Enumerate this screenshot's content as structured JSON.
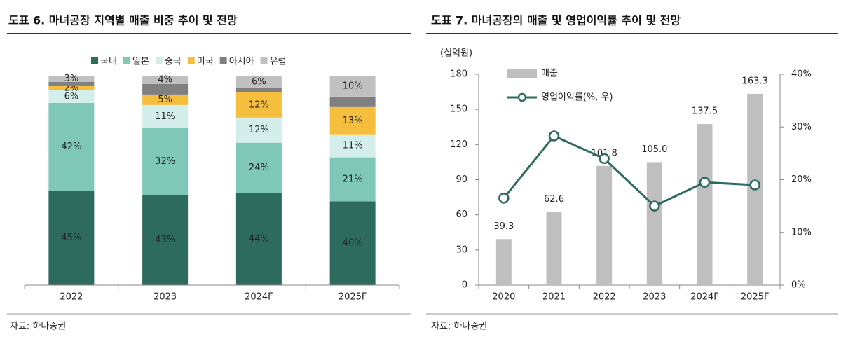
{
  "chart_data": [
    {
      "type": "bar",
      "stacked": true,
      "title": "도표 6. 마녀공장 지역별 매출 비중 추이 및 전망",
      "source": "자료: 하나증권",
      "categories": [
        "2022",
        "2023",
        "2024F",
        "2025F"
      ],
      "ylim": [
        0,
        100
      ],
      "series": [
        {
          "name": "국내",
          "color": "#2e6b5f",
          "values": [
            45,
            43,
            44,
            40
          ],
          "value_labels": [
            "45%",
            "43%",
            "44%",
            "40%"
          ]
        },
        {
          "name": "일본",
          "color": "#7fc8b8",
          "values": [
            42,
            32,
            24,
            21
          ],
          "value_labels": [
            "42%",
            "32%",
            "24%",
            "21%"
          ]
        },
        {
          "name": "중국",
          "color": "#d4efeb",
          "values": [
            6,
            11,
            12,
            11
          ],
          "value_labels": [
            "6%",
            "11%",
            "12%",
            "11%"
          ]
        },
        {
          "name": "미국",
          "color": "#f5be3c",
          "values": [
            2,
            5,
            12,
            13
          ],
          "value_labels": [
            "2%",
            "5%",
            "12%",
            "13%"
          ]
        },
        {
          "name": "아시아",
          "color": "#808080",
          "values": [
            2,
            5,
            2,
            5
          ],
          "value_labels": [
            null,
            null,
            null,
            null
          ]
        },
        {
          "name": "유럽",
          "color": "#c0c0c0",
          "values": [
            3,
            4,
            6,
            10
          ],
          "value_labels": [
            "3%",
            "4%",
            "6%",
            "10%"
          ]
        }
      ]
    },
    {
      "type": "combo",
      "title": "도표 7. 마녀공장의 매출 및 영업이익률 추이 및 전망",
      "source": "자료: 하나증권",
      "y_label": "(십억원)",
      "categories": [
        "2020",
        "2021",
        "2022",
        "2023",
        "2024F",
        "2025F"
      ],
      "ylim": [
        0,
        180
      ],
      "yticks": [
        0,
        30,
        60,
        90,
        120,
        150,
        180
      ],
      "y2lim": [
        0,
        40
      ],
      "y2ticks": [
        {
          "value": 0,
          "label": "0%"
        },
        {
          "value": 10,
          "label": "10%"
        },
        {
          "value": 20,
          "label": "20%"
        },
        {
          "value": 30,
          "label": "30%"
        },
        {
          "value": 40,
          "label": "40%"
        }
      ],
      "series": [
        {
          "name": "매출",
          "kind": "bar",
          "color": "#bfbfbf",
          "values": [
            39.3,
            62.6,
            101.8,
            105.0,
            137.5,
            163.3
          ],
          "value_labels": [
            "39.3",
            "62.6",
            "101.8",
            "105.0",
            "137.5",
            "163.3"
          ]
        },
        {
          "name": "영업이익률(%, 우)",
          "kind": "line",
          "axis": "y2",
          "color": "#2e6b5f",
          "values": [
            16.5,
            28.3,
            24.0,
            15.0,
            19.5,
            19.0
          ]
        }
      ]
    }
  ]
}
